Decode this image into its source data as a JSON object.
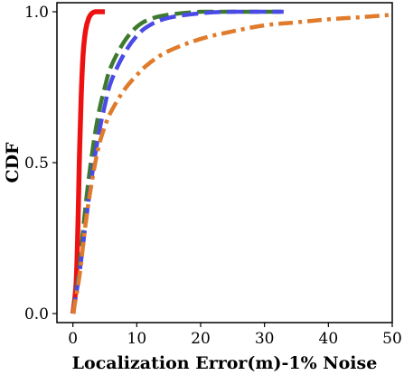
{
  "chart_data": {
    "type": "line",
    "xlabel": "Localization Error(m)-1% Noise",
    "ylabel": "CDF",
    "xlim": [
      -2.5,
      50
    ],
    "ylim": [
      -0.03,
      1.03
    ],
    "x_ticks": [
      0,
      10,
      20,
      30,
      40,
      50
    ],
    "y_ticks": [
      0.0,
      0.5,
      1.0
    ],
    "x_tick_labels": [
      "0",
      "10",
      "20",
      "30",
      "40",
      "50"
    ],
    "y_tick_labels": [
      "0.0",
      "0.5",
      "1.0"
    ],
    "grid": false,
    "legend": "none",
    "series": [
      {
        "color": "#ee1111",
        "style": "solid",
        "x": [
          0,
          0.5,
          0.8,
          1.0,
          1.3,
          1.6,
          2.0,
          2.5,
          3.0,
          3.5,
          4.0,
          5.0
        ],
        "y": [
          0.0,
          0.1,
          0.3,
          0.5,
          0.72,
          0.86,
          0.94,
          0.98,
          0.995,
          1.0,
          1.0,
          1.0
        ]
      },
      {
        "color": "#3d7a2f",
        "style": "dashed",
        "x": [
          0,
          1,
          2,
          3,
          4,
          5,
          6,
          8,
          10,
          12,
          15,
          20,
          25,
          33
        ],
        "y": [
          0.0,
          0.15,
          0.36,
          0.53,
          0.66,
          0.75,
          0.82,
          0.9,
          0.95,
          0.975,
          0.99,
          1.0,
          1.0,
          1.0
        ]
      },
      {
        "color": "#4a4ae6",
        "style": "dashed",
        "x": [
          0,
          1,
          2,
          3,
          4,
          5,
          6,
          8,
          10,
          12,
          15,
          20,
          25,
          33
        ],
        "y": [
          0.0,
          0.13,
          0.3,
          0.46,
          0.59,
          0.69,
          0.77,
          0.86,
          0.92,
          0.955,
          0.98,
          0.995,
          1.0,
          1.0
        ]
      },
      {
        "color": "#e07b2b",
        "style": "dashdot",
        "x": [
          0,
          1,
          2,
          3,
          4,
          5,
          6,
          8,
          10,
          12,
          15,
          20,
          25,
          30,
          35,
          40,
          45,
          50
        ],
        "y": [
          0.0,
          0.12,
          0.3,
          0.44,
          0.55,
          0.62,
          0.67,
          0.74,
          0.79,
          0.83,
          0.87,
          0.91,
          0.935,
          0.955,
          0.965,
          0.975,
          0.982,
          0.99
        ]
      }
    ]
  }
}
